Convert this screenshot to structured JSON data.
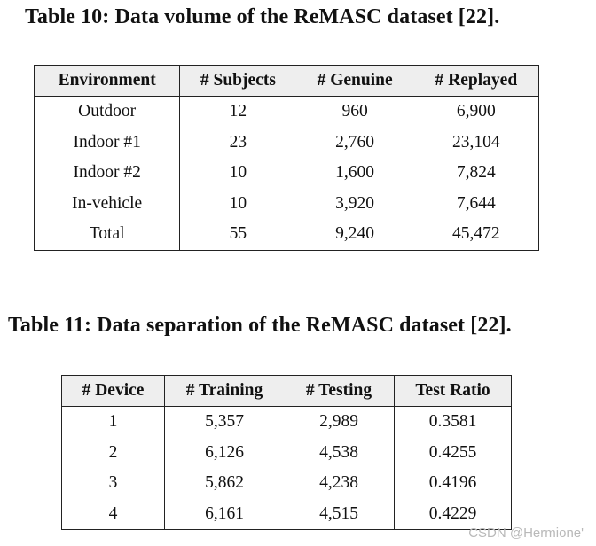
{
  "table10": {
    "caption": "Table 10: Data volume of the ReMASC dataset [22].",
    "headers": [
      "Environment",
      "# Subjects",
      "# Genuine",
      "# Replayed"
    ],
    "rows": [
      [
        "Outdoor",
        "12",
        "960",
        "6,900"
      ],
      [
        "Indoor #1",
        "23",
        "2,760",
        "23,104"
      ],
      [
        "Indoor #2",
        "10",
        "1,600",
        "7,824"
      ],
      [
        "In-vehicle",
        "10",
        "3,920",
        "7,644"
      ],
      [
        "Total",
        "55",
        "9,240",
        "45,472"
      ]
    ]
  },
  "table11": {
    "caption": "Table 11: Data separation of the ReMASC dataset [22].",
    "headers": [
      "# Device",
      "# Training",
      "# Testing",
      "Test Ratio"
    ],
    "rows": [
      [
        "1",
        "5,357",
        "2,989",
        "0.3581"
      ],
      [
        "2",
        "6,126",
        "4,538",
        "0.4255"
      ],
      [
        "3",
        "5,862",
        "4,238",
        "0.4196"
      ],
      [
        "4",
        "6,161",
        "4,515",
        "0.4229"
      ]
    ]
  },
  "watermark": "CSDN @Hermione'"
}
